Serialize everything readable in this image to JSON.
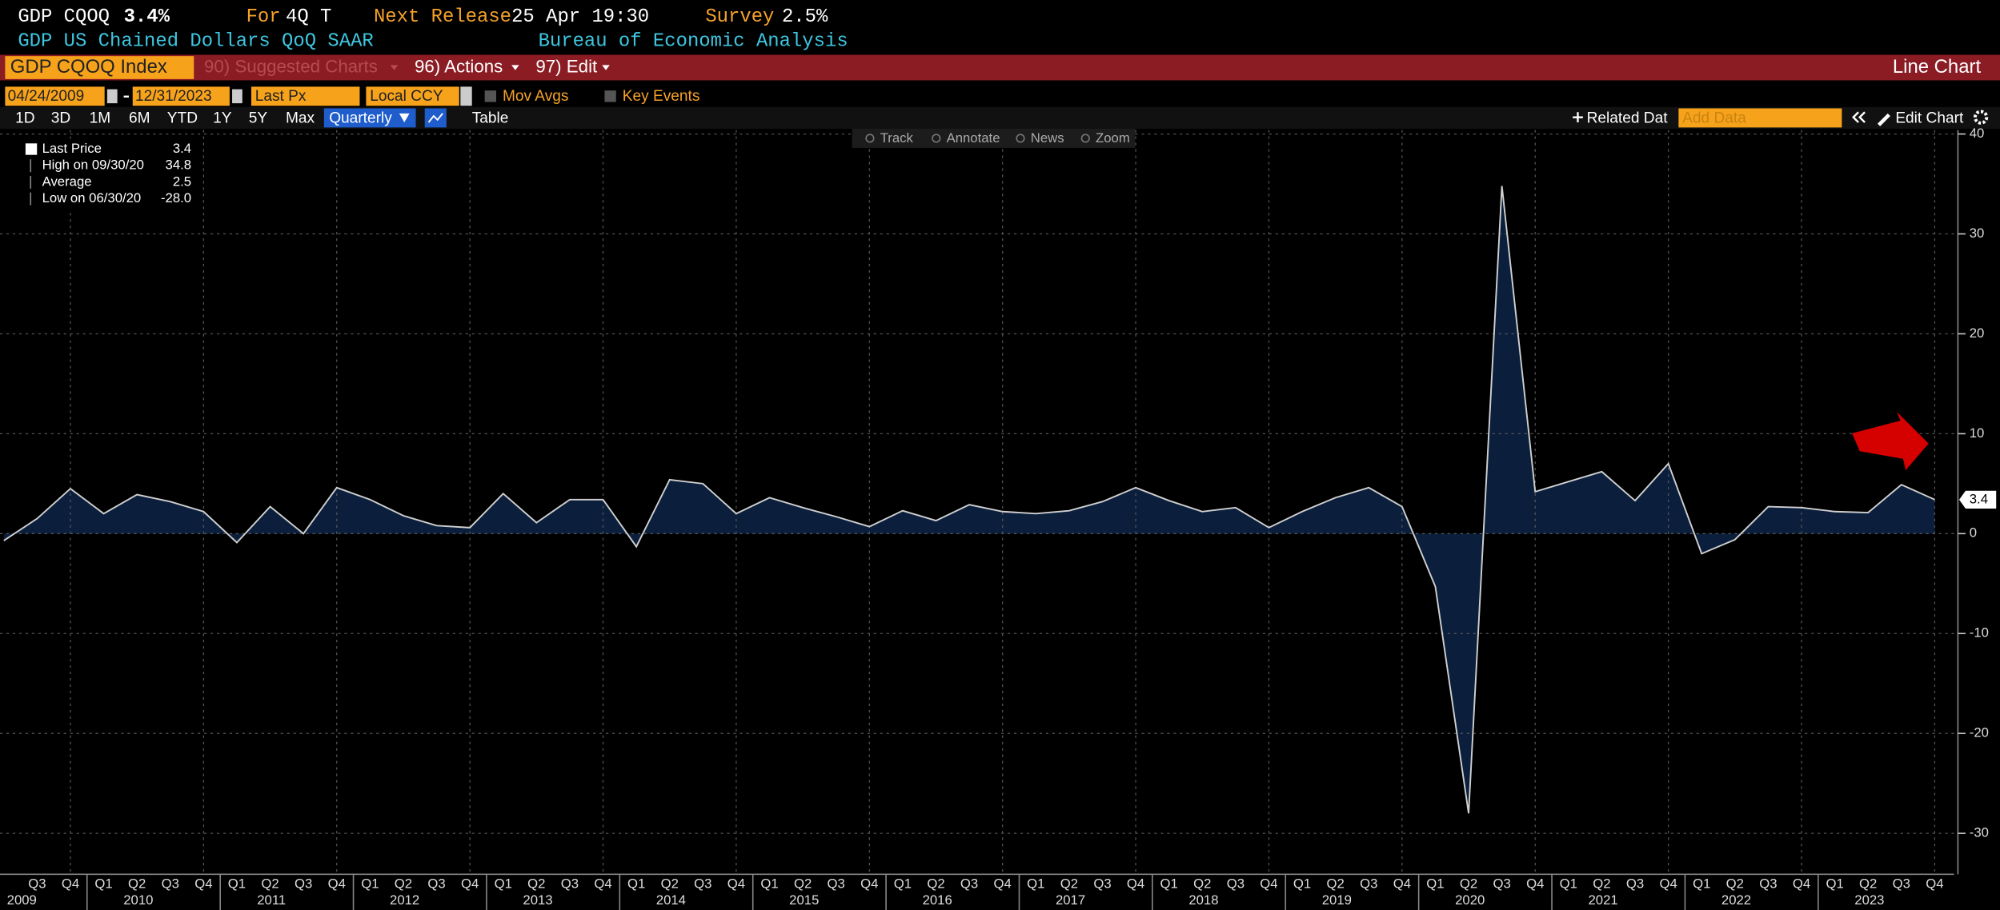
{
  "header": {
    "ticker": "GDP CQOQ",
    "last": "3.4%",
    "for_label": "For",
    "for_value": "4Q T",
    "next_label": "Next Release",
    "next_value": "25 Apr 19:30",
    "survey_label": "Survey",
    "survey_value": "2.5%",
    "description": "GDP US Chained Dollars QoQ SAAR",
    "source": "Bureau of Economic Analysis"
  },
  "menu": {
    "security": "GDP CQOQ Index",
    "suggested": "90) Suggested Charts",
    "actions": "96) Actions",
    "edit": "97) Edit",
    "chart_type": "Line Chart"
  },
  "controls": {
    "start_date": "04/24/2009",
    "end_date": "12/31/2023",
    "field": "Last Px",
    "currency": "Local CCY",
    "mov_avgs": "Mov Avgs",
    "key_events": "Key Events",
    "periods": [
      "1D",
      "3D",
      "1M",
      "6M",
      "YTD",
      "1Y",
      "5Y",
      "Max"
    ],
    "frequency": "Quarterly",
    "table": "Table",
    "related": "Related Dat",
    "add_data": "Add Data",
    "edit_chart": "Edit Chart"
  },
  "tools": [
    "Track",
    "Annotate",
    "News",
    "Zoom"
  ],
  "legend": [
    {
      "label": "Last Price",
      "value": "3.4"
    },
    {
      "label": "High on 09/30/20",
      "value": "34.8"
    },
    {
      "label": "Average",
      "value": "2.5"
    },
    {
      "label": "Low on 06/30/20",
      "value": "-28.0"
    }
  ],
  "chart_data": {
    "type": "area",
    "color": "#d0d0d0",
    "fill": "#0b1f3c",
    "categories": [
      null,
      "Q3",
      "Q4",
      "Q1",
      "Q2",
      "Q3",
      "Q4",
      "Q1",
      "Q2",
      "Q3",
      "Q4",
      "Q1",
      "Q2",
      "Q3",
      "Q4",
      "Q1",
      "Q2",
      "Q3",
      "Q4",
      "Q1",
      "Q2",
      "Q3",
      "Q4",
      "Q1",
      "Q2",
      "Q3",
      "Q4",
      "Q1",
      "Q2",
      "Q3",
      "Q4",
      "Q1",
      "Q2",
      "Q3",
      "Q4",
      "Q1",
      "Q2",
      "Q3",
      "Q4",
      "Q1",
      "Q2",
      "Q3",
      "Q4",
      "Q1",
      "Q2",
      "Q3",
      "Q4",
      "Q1",
      "Q2",
      "Q3",
      "Q4",
      "Q1",
      "Q2",
      "Q3",
      "Q4",
      "Q1",
      "Q2",
      "Q3",
      "Q4"
    ],
    "years": [
      "2009",
      "2010",
      "2011",
      "2012",
      "2013",
      "2014",
      "2015",
      "2016",
      "2017",
      "2018",
      "2019",
      "2020",
      "2021",
      "2022",
      "2023"
    ],
    "values": [
      -0.7,
      1.5,
      4.5,
      2.0,
      3.9,
      3.2,
      2.2,
      -0.9,
      2.7,
      0,
      4.6,
      3.4,
      1.8,
      0.8,
      0.6,
      4.0,
      1.1,
      3.4,
      3.4,
      -1.3,
      5.4,
      5.0,
      2.0,
      3.6,
      2.6,
      1.7,
      0.7,
      2.3,
      1.3,
      2.9,
      2.2,
      2.0,
      2.3,
      3.2,
      4.6,
      3.3,
      2.2,
      2.6,
      0.6,
      2.2,
      3.6,
      4.6,
      2.7,
      -5.3,
      -28.0,
      34.8,
      4.2,
      5.2,
      6.2,
      3.3,
      7.0,
      -2.0,
      -0.6,
      2.7,
      2.6,
      2.2,
      2.1,
      4.9,
      3.4
    ],
    "ylim": [
      -34.1,
      40.4
    ],
    "yticks": [
      -30,
      -20,
      -10,
      0,
      10,
      20,
      30,
      40
    ],
    "grid": true
  }
}
